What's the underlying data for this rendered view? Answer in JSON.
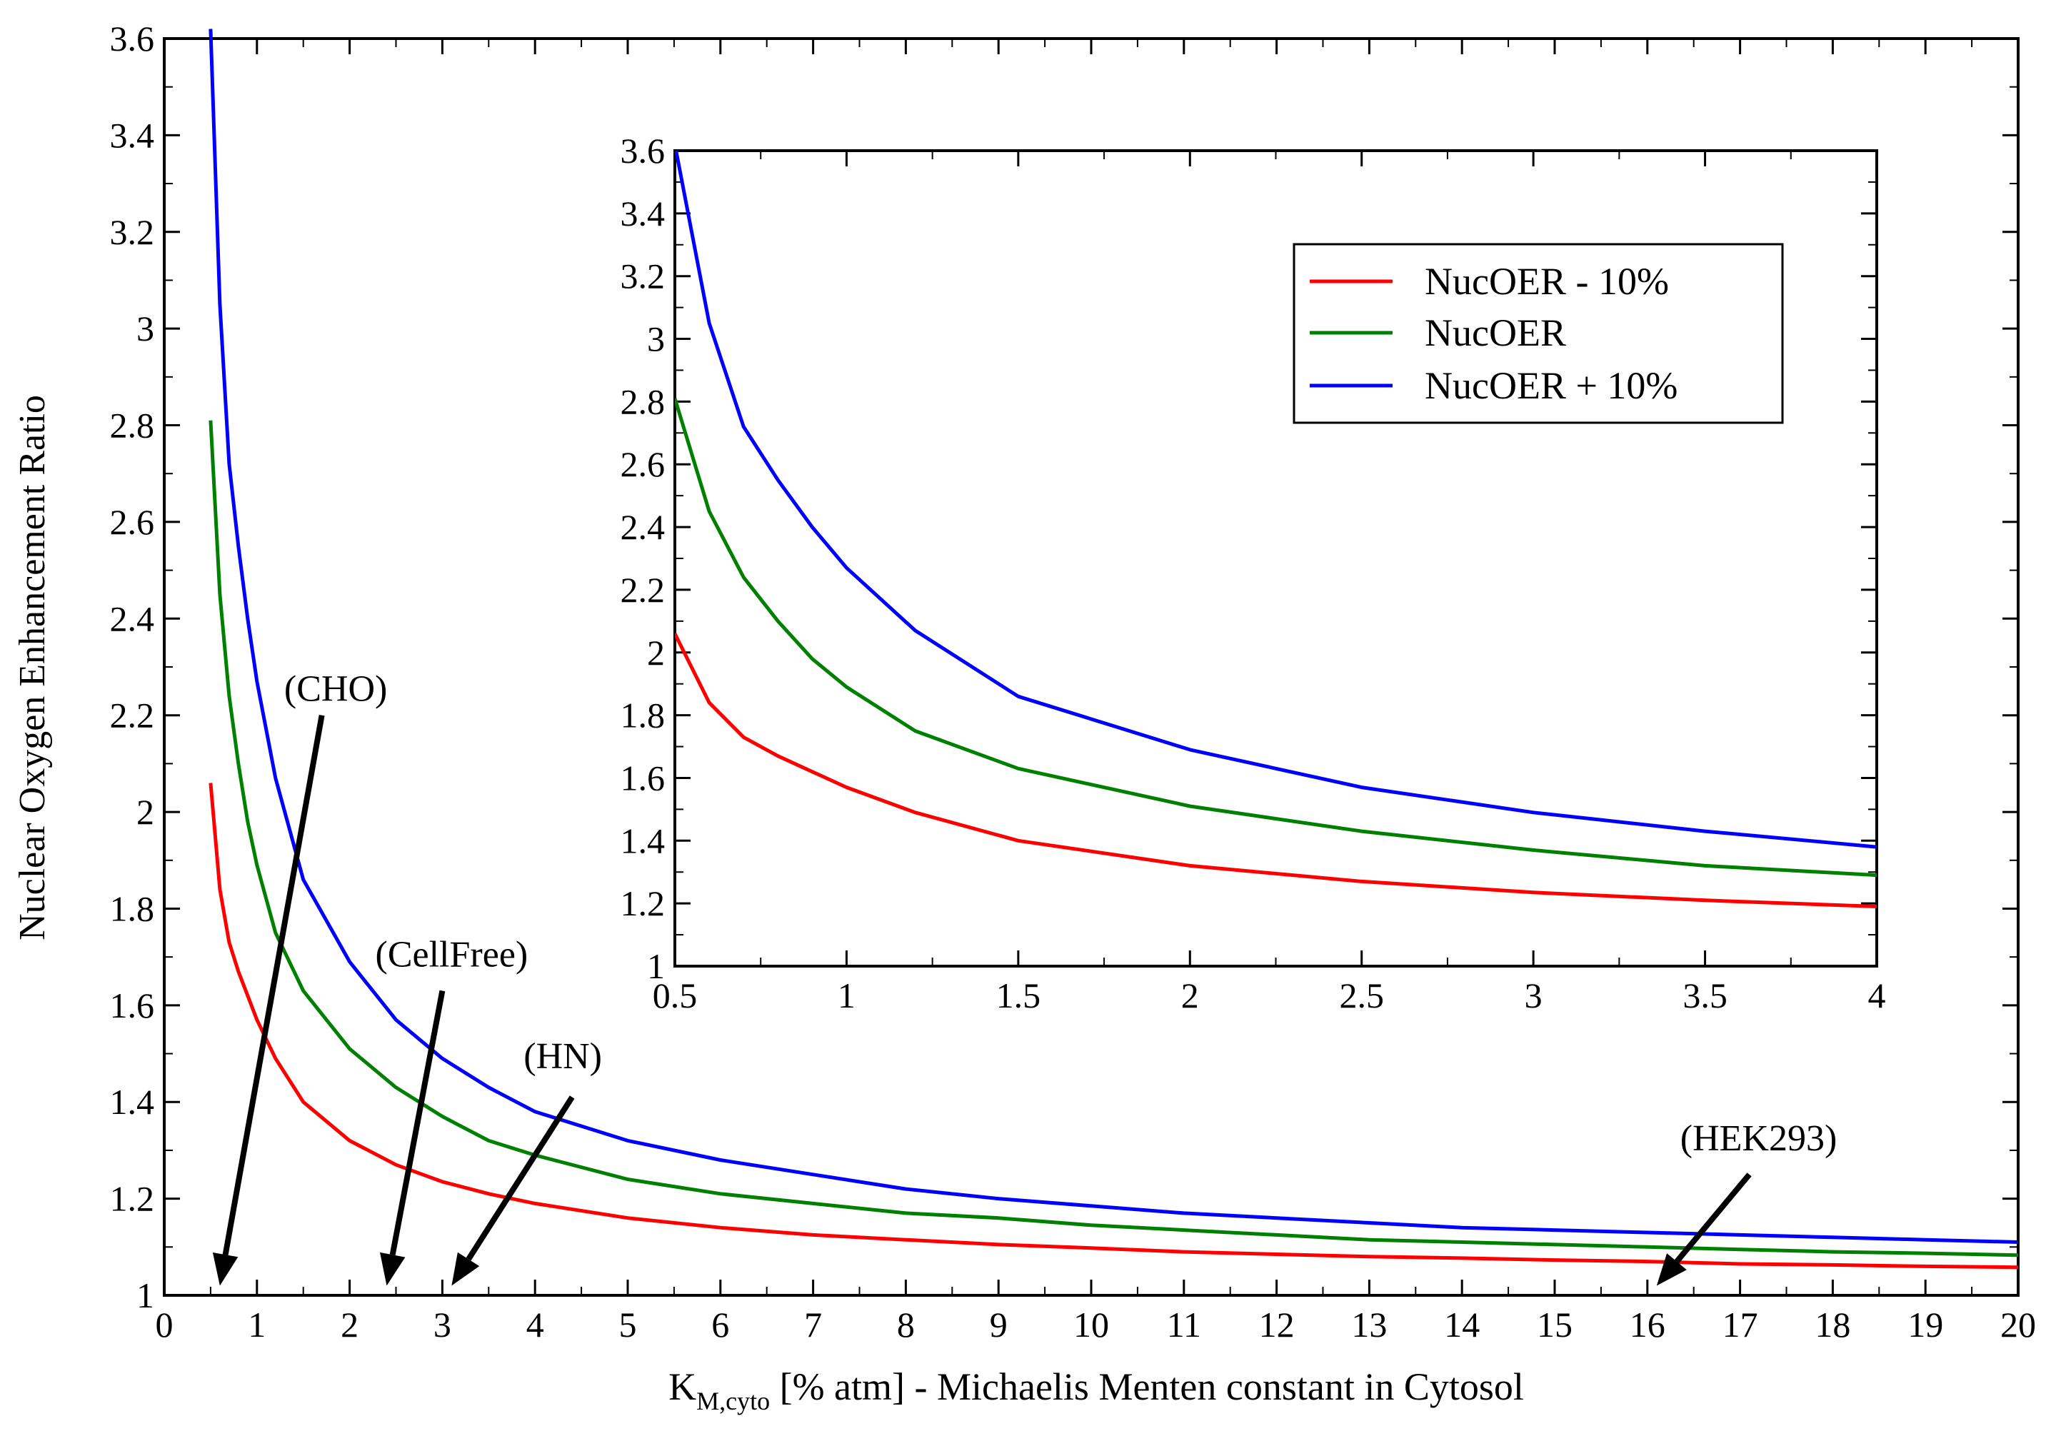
{
  "chart_data": [
    {
      "id": "main",
      "type": "line",
      "title": "",
      "xlabel_main": "K",
      "xlabel_sub": "M,cyto",
      "xlabel_rest": " [% atm] - Michaelis Menten constant in Cytosol",
      "ylabel": "Nuclear Oxygen Enhancement Ratio",
      "xlim": [
        0,
        20
      ],
      "ylim": [
        1,
        3.6
      ],
      "xticks": [
        "0",
        "1",
        "2",
        "3",
        "4",
        "5",
        "6",
        "7",
        "8",
        "9",
        "10",
        "11",
        "12",
        "13",
        "14",
        "15",
        "16",
        "17",
        "18",
        "19",
        "20"
      ],
      "yticks": [
        "1",
        "1.2",
        "1.4",
        "1.6",
        "1.8",
        "2",
        "2.2",
        "2.4",
        "2.6",
        "2.8",
        "3",
        "3.2",
        "3.4",
        "3.6"
      ],
      "series": [
        {
          "name": "NucOER - 10%",
          "color": "#ff0000",
          "x": [
            0.5,
            0.6,
            0.7,
            0.8,
            0.9,
            1,
            1.2,
            1.5,
            2,
            2.5,
            3,
            3.5,
            4,
            5,
            6,
            7,
            8,
            9,
            10,
            11,
            12,
            13,
            14,
            15,
            16,
            17,
            18,
            19,
            20
          ],
          "y": [
            2.06,
            1.84,
            1.73,
            1.67,
            1.62,
            1.57,
            1.49,
            1.4,
            1.32,
            1.27,
            1.235,
            1.21,
            1.19,
            1.16,
            1.14,
            1.125,
            1.115,
            1.105,
            1.098,
            1.09,
            1.085,
            1.08,
            1.077,
            1.073,
            1.07,
            1.065,
            1.063,
            1.06,
            1.058
          ]
        },
        {
          "name": "NucOER",
          "color": "#008000",
          "x": [
            0.5,
            0.6,
            0.7,
            0.8,
            0.9,
            1,
            1.2,
            1.5,
            2,
            2.5,
            3,
            3.5,
            4,
            5,
            6,
            7,
            8,
            9,
            10,
            11,
            12,
            13,
            14,
            15,
            16,
            17,
            18,
            19,
            20
          ],
          "y": [
            2.81,
            2.45,
            2.24,
            2.1,
            1.98,
            1.89,
            1.75,
            1.63,
            1.51,
            1.43,
            1.37,
            1.32,
            1.29,
            1.24,
            1.21,
            1.19,
            1.17,
            1.16,
            1.145,
            1.135,
            1.125,
            1.115,
            1.11,
            1.105,
            1.1,
            1.095,
            1.09,
            1.087,
            1.083
          ]
        },
        {
          "name": "NucOER + 10%",
          "color": "#0000ff",
          "x": [
            0.5,
            0.6,
            0.7,
            0.8,
            0.9,
            1,
            1.2,
            1.5,
            2,
            2.5,
            3,
            3.5,
            4,
            5,
            6,
            7,
            8,
            9,
            10,
            11,
            12,
            13,
            14,
            15,
            16,
            17,
            18,
            19,
            20
          ],
          "y": [
            3.62,
            3.05,
            2.72,
            2.55,
            2.4,
            2.27,
            2.07,
            1.86,
            1.69,
            1.57,
            1.49,
            1.43,
            1.38,
            1.32,
            1.28,
            1.25,
            1.22,
            1.2,
            1.185,
            1.17,
            1.16,
            1.15,
            1.14,
            1.135,
            1.13,
            1.125,
            1.12,
            1.115,
            1.11
          ]
        }
      ],
      "annotations": [
        {
          "label": "(CHO)",
          "x": 1.85,
          "y": 2.23,
          "arrow_from": [
            1.7,
            2.2
          ],
          "arrow_to": [
            0.6,
            1.02
          ]
        },
        {
          "label": "(CellFree)",
          "x": 3.1,
          "y": 1.68,
          "arrow_from": [
            3.0,
            1.63
          ],
          "arrow_to": [
            2.4,
            1.02
          ]
        },
        {
          "label": "(HN)",
          "x": 4.3,
          "y": 1.47,
          "arrow_from": [
            4.4,
            1.41
          ],
          "arrow_to": [
            3.1,
            1.02
          ]
        },
        {
          "label": "(HEK293)",
          "x": 17.2,
          "y": 1.3,
          "arrow_from": [
            17.1,
            1.25
          ],
          "arrow_to": [
            16.1,
            1.02
          ]
        }
      ]
    },
    {
      "id": "inset",
      "type": "line",
      "xlim": [
        0.5,
        4
      ],
      "ylim": [
        1,
        3.6
      ],
      "xticks": [
        "0.5",
        "1",
        "1.5",
        "2",
        "2.5",
        "3",
        "3.5",
        "4"
      ],
      "yticks": [
        "1",
        "1.2",
        "1.4",
        "1.6",
        "1.8",
        "2",
        "2.2",
        "2.4",
        "2.6",
        "2.8",
        "3",
        "3.2",
        "3.4",
        "3.6"
      ],
      "legend": {
        "placement": "top-right",
        "entries": [
          "NucOER - 10%",
          "NucOER",
          "NucOER + 10%"
        ]
      }
    }
  ]
}
